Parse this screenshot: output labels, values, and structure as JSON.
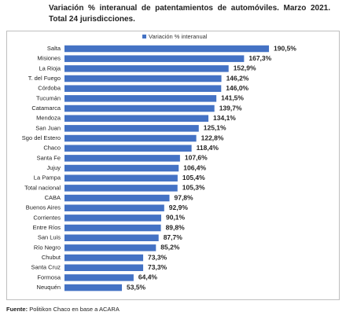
{
  "chart_data": {
    "type": "bar",
    "orientation": "horizontal",
    "title": "Variación % interanual de patentamientos de automóviles. Marzo 2021. Total 24 jurisdicciones.",
    "categories": [
      "Salta",
      "Misiones",
      "La Rioja",
      "T. del Fuego",
      "Córdoba",
      "Tucumán",
      "Catamarca",
      "Mendoza",
      "San Juan",
      "Sgo del Estero",
      "Chaco",
      "Santa Fe",
      "Jujuy",
      "La Pampa",
      "Total nacional",
      "CABA",
      "Buenos Aires",
      "Corrientes",
      "Entre Ríos",
      "San Luis",
      "Río Negro",
      "Chubut",
      "Santa Cruz",
      "Formosa",
      "Neuquén"
    ],
    "series": [
      {
        "name": "Variación % interanual",
        "color": "#4472c4",
        "values": [
          190.5,
          167.3,
          152.9,
          146.2,
          146.0,
          141.5,
          139.7,
          134.1,
          125.1,
          122.8,
          118.4,
          107.6,
          106.4,
          105.4,
          105.3,
          97.8,
          92.9,
          90.1,
          89.8,
          87.7,
          85.2,
          73.3,
          73.3,
          64.4,
          53.5
        ],
        "value_labels": [
          "190,5%",
          "167,3%",
          "152,9%",
          "146,2%",
          "146,0%",
          "141,5%",
          "139,7%",
          "134,1%",
          "125,1%",
          "122,8%",
          "118,4%",
          "107,6%",
          "106,4%",
          "105,4%",
          "105,3%",
          "97,8%",
          "92,9%",
          "90,1%",
          "89,8%",
          "87,7%",
          "85,2%",
          "73,3%",
          "73,3%",
          "64,4%",
          "53,5%"
        ]
      }
    ],
    "legend": "top"
  },
  "source_label": "Fuente:",
  "source": "Politikon Chaco en base a ACARA"
}
